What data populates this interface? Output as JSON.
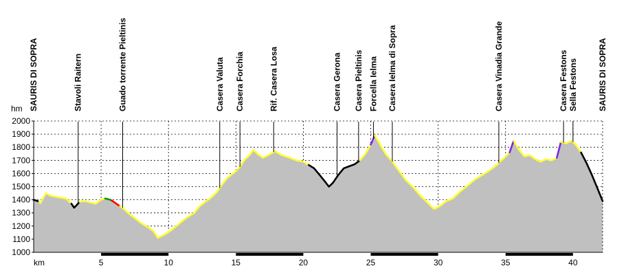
{
  "chart_data": {
    "type": "area",
    "y_unit_label": "hm",
    "x_unit_label": "km",
    "ylim": [
      1000,
      2000
    ],
    "xlim": [
      0,
      42.2
    ],
    "y_ticks": [
      "2000",
      "1900",
      "1800",
      "1700",
      "1600",
      "1500",
      "1400",
      "1300",
      "1200",
      "1100",
      "1000"
    ],
    "x_ticks": [
      "5",
      "10",
      "15",
      "20",
      "25",
      "30",
      "35",
      "40"
    ],
    "grid": true,
    "colors": {
      "fill": "#c0c0c0",
      "easy": "#ffff33",
      "medium": "#000000",
      "hard": "#ff0000",
      "green": "#009900",
      "steep": "#7a2be0",
      "band": "#000000"
    },
    "profile": [
      [
        0,
        1400
      ],
      [
        0.3,
        1390
      ],
      [
        0.5,
        1375
      ],
      [
        0.9,
        1450
      ],
      [
        1.3,
        1430
      ],
      [
        1.8,
        1420
      ],
      [
        2.4,
        1410
      ],
      [
        2.8,
        1370
      ],
      [
        3.0,
        1340
      ],
      [
        3.2,
        1360
      ],
      [
        3.4,
        1385
      ],
      [
        3.8,
        1390
      ],
      [
        4.2,
        1380
      ],
      [
        4.6,
        1370
      ],
      [
        5.0,
        1400
      ],
      [
        5.3,
        1410
      ],
      [
        5.7,
        1400
      ],
      [
        6.0,
        1380
      ],
      [
        6.4,
        1350
      ],
      [
        6.6,
        1340
      ],
      [
        7.0,
        1300
      ],
      [
        7.5,
        1260
      ],
      [
        8.0,
        1220
      ],
      [
        8.5,
        1190
      ],
      [
        8.9,
        1160
      ],
      [
        9.2,
        1110
      ],
      [
        9.6,
        1130
      ],
      [
        10.1,
        1160
      ],
      [
        10.7,
        1210
      ],
      [
        11.3,
        1260
      ],
      [
        11.9,
        1300
      ],
      [
        12.3,
        1350
      ],
      [
        12.8,
        1390
      ],
      [
        13.2,
        1420
      ],
      [
        13.6,
        1460
      ],
      [
        14.0,
        1520
      ],
      [
        14.4,
        1570
      ],
      [
        14.9,
        1610
      ],
      [
        15.3,
        1650
      ],
      [
        15.6,
        1700
      ],
      [
        16.0,
        1740
      ],
      [
        16.3,
        1780
      ],
      [
        16.6,
        1750
      ],
      [
        17.0,
        1720
      ],
      [
        17.4,
        1740
      ],
      [
        17.9,
        1770
      ],
      [
        18.4,
        1740
      ],
      [
        19.0,
        1720
      ],
      [
        19.5,
        1700
      ],
      [
        20.0,
        1690
      ],
      [
        20.4,
        1665
      ],
      [
        20.8,
        1640
      ],
      [
        21.2,
        1590
      ],
      [
        21.6,
        1540
      ],
      [
        21.9,
        1500
      ],
      [
        22.2,
        1530
      ],
      [
        22.6,
        1590
      ],
      [
        23.0,
        1640
      ],
      [
        23.4,
        1655
      ],
      [
        23.8,
        1670
      ],
      [
        24.2,
        1700
      ],
      [
        24.6,
        1750
      ],
      [
        25.0,
        1820
      ],
      [
        25.3,
        1890
      ],
      [
        25.7,
        1820
      ],
      [
        26.1,
        1750
      ],
      [
        26.6,
        1690
      ],
      [
        27.1,
        1620
      ],
      [
        27.6,
        1550
      ],
      [
        28.2,
        1490
      ],
      [
        28.7,
        1430
      ],
      [
        29.2,
        1380
      ],
      [
        29.7,
        1330
      ],
      [
        30.1,
        1350
      ],
      [
        30.6,
        1390
      ],
      [
        31.1,
        1410
      ],
      [
        31.6,
        1460
      ],
      [
        32.2,
        1510
      ],
      [
        32.8,
        1560
      ],
      [
        33.3,
        1590
      ],
      [
        33.9,
        1630
      ],
      [
        34.4,
        1670
      ],
      [
        34.9,
        1720
      ],
      [
        35.3,
        1760
      ],
      [
        35.6,
        1850
      ],
      [
        36.0,
        1780
      ],
      [
        36.4,
        1730
      ],
      [
        36.8,
        1740
      ],
      [
        37.2,
        1710
      ],
      [
        37.6,
        1690
      ],
      [
        38.0,
        1710
      ],
      [
        38.4,
        1700
      ],
      [
        38.8,
        1720
      ],
      [
        39.1,
        1840
      ],
      [
        39.5,
        1830
      ],
      [
        39.9,
        1850
      ],
      [
        40.2,
        1820
      ],
      [
        40.6,
        1760
      ],
      [
        41.0,
        1680
      ],
      [
        41.4,
        1590
      ],
      [
        41.8,
        1490
      ],
      [
        42.2,
        1390
      ]
    ],
    "segments": [
      {
        "from": 0.0,
        "to": 0.4,
        "difficulty": "medium"
      },
      {
        "from": 0.4,
        "to": 2.8,
        "difficulty": "easy"
      },
      {
        "from": 2.8,
        "to": 3.4,
        "difficulty": "medium"
      },
      {
        "from": 3.4,
        "to": 5.3,
        "difficulty": "easy"
      },
      {
        "from": 5.3,
        "to": 5.8,
        "difficulty": "green"
      },
      {
        "from": 5.8,
        "to": 6.4,
        "difficulty": "hard"
      },
      {
        "from": 6.4,
        "to": 20.4,
        "difficulty": "easy"
      },
      {
        "from": 20.4,
        "to": 24.2,
        "difficulty": "medium"
      },
      {
        "from": 24.2,
        "to": 25.0,
        "difficulty": "easy"
      },
      {
        "from": 25.0,
        "to": 25.3,
        "difficulty": "steep"
      },
      {
        "from": 25.3,
        "to": 35.3,
        "difficulty": "easy"
      },
      {
        "from": 35.3,
        "to": 35.6,
        "difficulty": "steep"
      },
      {
        "from": 35.6,
        "to": 38.8,
        "difficulty": "easy"
      },
      {
        "from": 38.8,
        "to": 39.1,
        "difficulty": "steep"
      },
      {
        "from": 39.1,
        "to": 40.6,
        "difficulty": "easy"
      },
      {
        "from": 40.6,
        "to": 42.2,
        "difficulty": "medium"
      }
    ],
    "waypoints": [
      {
        "name": "SAURIS DI SOPRA",
        "km": 0.0
      },
      {
        "name": "Stavoli Raitern",
        "km": 3.3
      },
      {
        "name": "Guado torrente Pieltinis",
        "km": 6.6
      },
      {
        "name": "Casera Valuta",
        "km": 13.8
      },
      {
        "name": "Casera Forchia",
        "km": 15.3
      },
      {
        "name": "Rif. Casera Losa",
        "km": 17.8
      },
      {
        "name": "Casera Gerona",
        "km": 22.5
      },
      {
        "name": "Casera Pieltinis",
        "km": 24.1
      },
      {
        "name": "Forcella Ielma",
        "km": 25.2
      },
      {
        "name": "Casera Ielma di Sopra",
        "km": 26.6
      },
      {
        "name": "Casera Vinadia Grande",
        "km": 34.5
      },
      {
        "name": "Casera Festons",
        "km": 39.3
      },
      {
        "name": "Sella Festons",
        "km": 40.0
      },
      {
        "name": "SAURIS DI SOPRA",
        "km": 42.2
      }
    ]
  }
}
